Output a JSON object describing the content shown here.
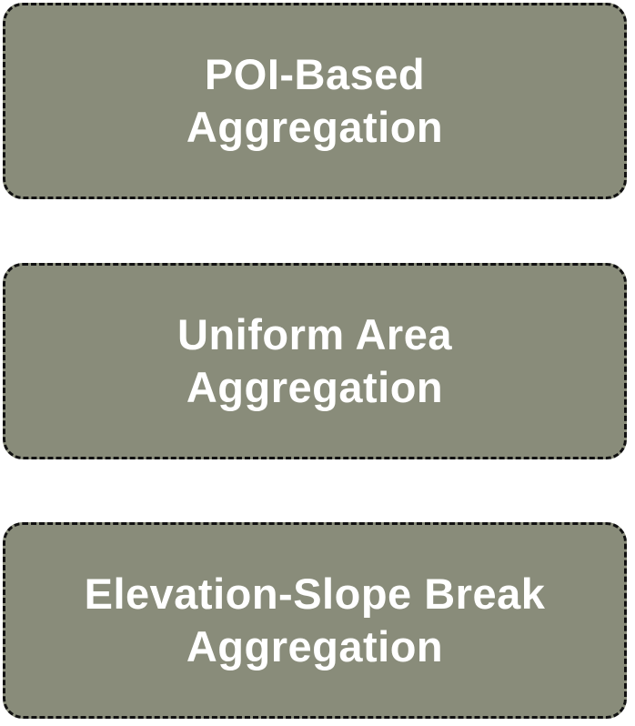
{
  "boxes": [
    {
      "line1": "POI-Based",
      "line2": "Aggregation"
    },
    {
      "line1": "Uniform Area",
      "line2": "Aggregation"
    },
    {
      "line1": "Elevation-Slope Break",
      "line2": "Aggregation"
    }
  ],
  "colors": {
    "box_fill": "#898c7a",
    "box_border": "#111111",
    "text": "#ffffff",
    "background": "#ffffff"
  }
}
